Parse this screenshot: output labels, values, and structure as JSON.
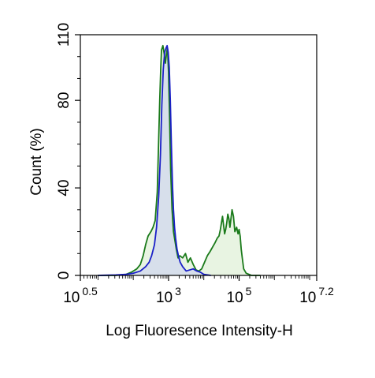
{
  "chart_data": {
    "type": "area",
    "title": "",
    "xlabel": "Log Fluoresence Intensity-H",
    "ylabel": "Count  (%)",
    "x_scale": "log",
    "xlim_log10": [
      0.5,
      7.2
    ],
    "ylim": [
      0,
      110
    ],
    "x_ticks": [
      {
        "base": "10",
        "exp": "0.5",
        "log10": 0.5
      },
      {
        "base": "10",
        "exp": "3",
        "log10": 3
      },
      {
        "base": "10",
        "exp": "5",
        "log10": 5
      },
      {
        "base": "10",
        "exp": "7.2",
        "log10": 7.2
      }
    ],
    "y_ticks": [
      {
        "label": "0",
        "value": 0
      },
      {
        "label": "40",
        "value": 40
      },
      {
        "label": "80",
        "value": 80
      },
      {
        "label": "110",
        "value": 110
      }
    ],
    "grid": false,
    "legend": "none",
    "series": [
      {
        "color": "#1a7a1a",
        "fill": "#e4f2dd",
        "x_log10": [
          1.0,
          1.5,
          1.8,
          1.95,
          2.1,
          2.2,
          2.28,
          2.35,
          2.42,
          2.5,
          2.56,
          2.62,
          2.68,
          2.72,
          2.75,
          2.78,
          2.8,
          2.84,
          2.88,
          2.91,
          2.94,
          2.97,
          3.0,
          3.03,
          3.06,
          3.1,
          3.14,
          3.18,
          3.22,
          3.27,
          3.32,
          3.4,
          3.48,
          3.55,
          3.62,
          3.7,
          3.78,
          3.86,
          3.94,
          4.02,
          4.1,
          4.18,
          4.25,
          4.32,
          4.38,
          4.43,
          4.47,
          4.5,
          4.53,
          4.56,
          4.59,
          4.62,
          4.65,
          4.68,
          4.71,
          4.74,
          4.77,
          4.8,
          4.84,
          4.88,
          4.93,
          4.97,
          5.0,
          5.03,
          5.06,
          5.09,
          5.13,
          5.2,
          5.35,
          5.6
        ],
        "values": [
          0,
          0,
          0.5,
          1.5,
          3,
          5,
          9,
          14,
          18,
          20,
          22,
          25,
          38,
          62,
          80,
          95,
          103,
          105,
          101,
          97,
          101,
          104,
          93,
          72,
          48,
          30,
          20,
          16,
          12,
          8,
          9,
          8,
          10,
          6,
          8,
          5,
          2.5,
          2,
          3,
          6,
          9,
          11,
          13,
          15,
          17,
          18,
          21,
          24,
          27,
          23,
          19,
          21,
          24,
          28,
          26,
          22,
          26,
          30,
          27,
          20,
          22,
          19,
          21,
          18,
          12,
          8,
          3,
          1,
          0,
          0
        ]
      },
      {
        "color": "#1a1fc8",
        "fill": "#d4dbec",
        "x_log10": [
          1.0,
          1.5,
          1.8,
          2.0,
          2.2,
          2.35,
          2.45,
          2.52,
          2.6,
          2.66,
          2.72,
          2.77,
          2.81,
          2.85,
          2.89,
          2.93,
          2.96,
          2.99,
          3.02,
          3.05,
          3.08,
          3.11,
          3.14,
          3.17,
          3.2,
          3.24,
          3.28,
          3.33,
          3.4,
          3.5,
          3.6,
          3.7,
          3.8,
          3.9,
          4.0,
          4.2
        ],
        "values": [
          0,
          0.2,
          0.5,
          1,
          2,
          4,
          6,
          9,
          14,
          22,
          36,
          55,
          78,
          94,
          102,
          104,
          105,
          102,
          95,
          80,
          60,
          42,
          30,
          22,
          17,
          12,
          9,
          6,
          4,
          2,
          2.5,
          3,
          2,
          1.5,
          0.5,
          0
        ]
      }
    ]
  }
}
